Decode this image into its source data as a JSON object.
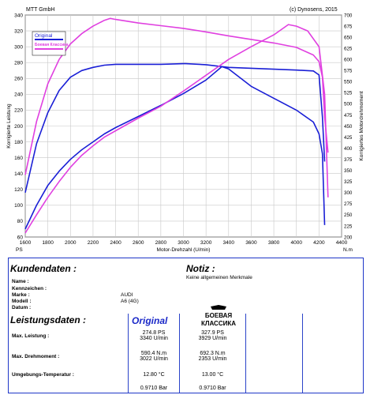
{
  "header": {
    "left": "MTT GmbH",
    "right": "(c) Dynosens, 2015"
  },
  "chart_data": {
    "type": "line",
    "xlabel": "Motor-Drehzahl (U/min)",
    "xunit": "N.m",
    "ylabel_left": "Korrigierte Leistung",
    "yunit_left": "PS",
    "ylabel_right": "Korrigiertes Motordrehmoment",
    "xlim": [
      1600,
      4400
    ],
    "ylim_left": [
      60,
      340
    ],
    "ylim_right": [
      200,
      700
    ],
    "x_ticks": [
      1600,
      1800,
      2000,
      2200,
      2400,
      2600,
      2800,
      3000,
      3200,
      3400,
      3600,
      3800,
      4000,
      4200,
      4400
    ],
    "y_left_ticks": [
      60,
      80,
      100,
      120,
      140,
      160,
      180,
      200,
      220,
      240,
      260,
      280,
      300,
      320,
      340
    ],
    "y_right_ticks": [
      200,
      225,
      250,
      275,
      300,
      325,
      350,
      375,
      400,
      425,
      450,
      475,
      500,
      525,
      550,
      575,
      600,
      625,
      650,
      675,
      700
    ],
    "grid": true,
    "legend": {
      "position": "top-left",
      "entries": [
        "Original",
        "Боевая Классика"
      ]
    },
    "colors": {
      "original": "#1a1fd6",
      "tuned": "#e040e0"
    },
    "series": [
      {
        "name": "Original",
        "quantity": "power",
        "axis": "left",
        "x": [
          1600,
          1700,
          1800,
          1900,
          2000,
          2100,
          2200,
          2300,
          2400,
          2600,
          2800,
          3000,
          3200,
          3340,
          3400,
          3600,
          3800,
          4000,
          4150,
          4200,
          4230,
          4250
        ],
        "y": [
          70,
          100,
          125,
          143,
          158,
          170,
          180,
          190,
          198,
          212,
          226,
          241,
          258,
          274.8,
          272,
          250,
          235,
          220,
          205,
          190,
          165,
          75
        ]
      },
      {
        "name": "Original",
        "quantity": "torque",
        "axis": "right",
        "x": [
          1600,
          1700,
          1800,
          1900,
          2000,
          2100,
          2200,
          2300,
          2400,
          2600,
          2800,
          3000,
          3022,
          3200,
          3400,
          3600,
          3800,
          4000,
          4150,
          4200,
          4230,
          4250
        ],
        "y": [
          300,
          410,
          480,
          530,
          560,
          575,
          582,
          587,
          589,
          589,
          589,
          590.4,
          590.4,
          588,
          582,
          580,
          578,
          576,
          574,
          565,
          470,
          370
        ]
      },
      {
        "name": "Боевая Классика",
        "quantity": "power",
        "axis": "left",
        "x": [
          1600,
          1700,
          1800,
          1900,
          2000,
          2100,
          2200,
          2300,
          2400,
          2600,
          2800,
          3000,
          3200,
          3400,
          3600,
          3800,
          3929,
          4000,
          4100,
          4200,
          4250,
          4280
        ],
        "y": [
          65,
          88,
          110,
          130,
          148,
          163,
          175,
          186,
          194,
          210,
          225,
          244,
          264,
          284,
          300,
          315,
          327.9,
          326,
          320,
          300,
          240,
          110
        ]
      },
      {
        "name": "Боевая Классика",
        "quantity": "torque",
        "axis": "right",
        "x": [
          1600,
          1700,
          1800,
          1900,
          2000,
          2100,
          2200,
          2300,
          2353,
          2400,
          2600,
          2800,
          3000,
          3200,
          3400,
          3600,
          3800,
          4000,
          4150,
          4200,
          4230,
          4250,
          4280
        ],
        "y": [
          340,
          460,
          545,
          600,
          635,
          658,
          675,
          688,
          692.3,
          690,
          682,
          676,
          670,
          662,
          653,
          645,
          637,
          627,
          610,
          595,
          560,
          470,
          390
        ]
      }
    ]
  },
  "customer": {
    "title": "Kundendaten :",
    "fields": [
      {
        "label": "Name :",
        "value": ""
      },
      {
        "label": "Kennzeichen :",
        "value": ""
      },
      {
        "label": "Marke :",
        "value": "AUDI"
      },
      {
        "label": "Modell :",
        "value": "A6 (4G)"
      },
      {
        "label": "Datum :",
        "value": ""
      }
    ]
  },
  "notiz": {
    "title": "Notiz :",
    "text": "Keine allgemeinen Merkmale"
  },
  "performance": {
    "title": "Leistungsdaten :",
    "col_original": "Original",
    "rows": [
      {
        "label": "Max. Leistung :",
        "orig": [
          "274.8 PS",
          "3340 U/min"
        ],
        "tuned": [
          "327.9 PS",
          "3929 U/min"
        ]
      },
      {
        "label": "Max. Drehmoment :",
        "orig": [
          "590.4 N.m",
          "3022 U/min"
        ],
        "tuned": [
          "692.3 N.m",
          "2353 U/min"
        ]
      },
      {
        "label": "Umgebungs-Temperatur :",
        "orig": [
          "12.80 °C"
        ],
        "tuned": [
          "13.00 °C"
        ]
      },
      {
        "label": "",
        "orig": [
          "0.9710 Bar"
        ],
        "tuned": [
          "0.9710 Bar"
        ]
      }
    ],
    "logo_text": "Боевая Классика"
  }
}
